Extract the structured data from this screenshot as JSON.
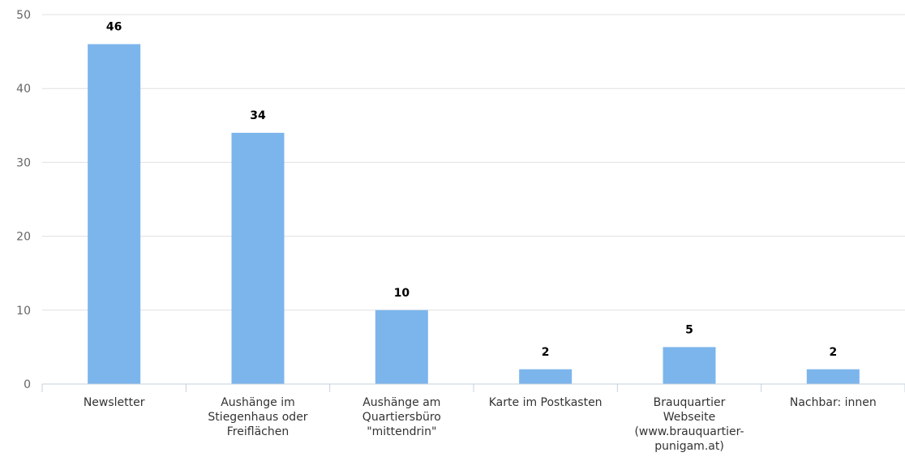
{
  "chart_data": {
    "type": "bar",
    "categories": [
      [
        "Newsletter"
      ],
      [
        "Aushänge im",
        "Stiegenhaus oder",
        "Freiflächen"
      ],
      [
        "Aushänge am",
        "Quartiersbüro",
        "\"mittendrin\""
      ],
      [
        "Karte im Postkasten"
      ],
      [
        "Brauquartier",
        "Webseite",
        "(www.brauquartier-",
        "punigam.at)"
      ],
      [
        "Nachbar: innen"
      ]
    ],
    "values": [
      46,
      34,
      10,
      2,
      5,
      2
    ],
    "data_labels": [
      "46",
      "34",
      "10",
      "2",
      "5",
      "2"
    ],
    "y_ticks": [
      "0",
      "10",
      "20",
      "30",
      "40",
      "50"
    ],
    "ylim": [
      0,
      50
    ],
    "grid": true,
    "legend": "none",
    "title": "",
    "xlabel": "",
    "ylabel": "",
    "bar_color": "#7cb5ec"
  }
}
